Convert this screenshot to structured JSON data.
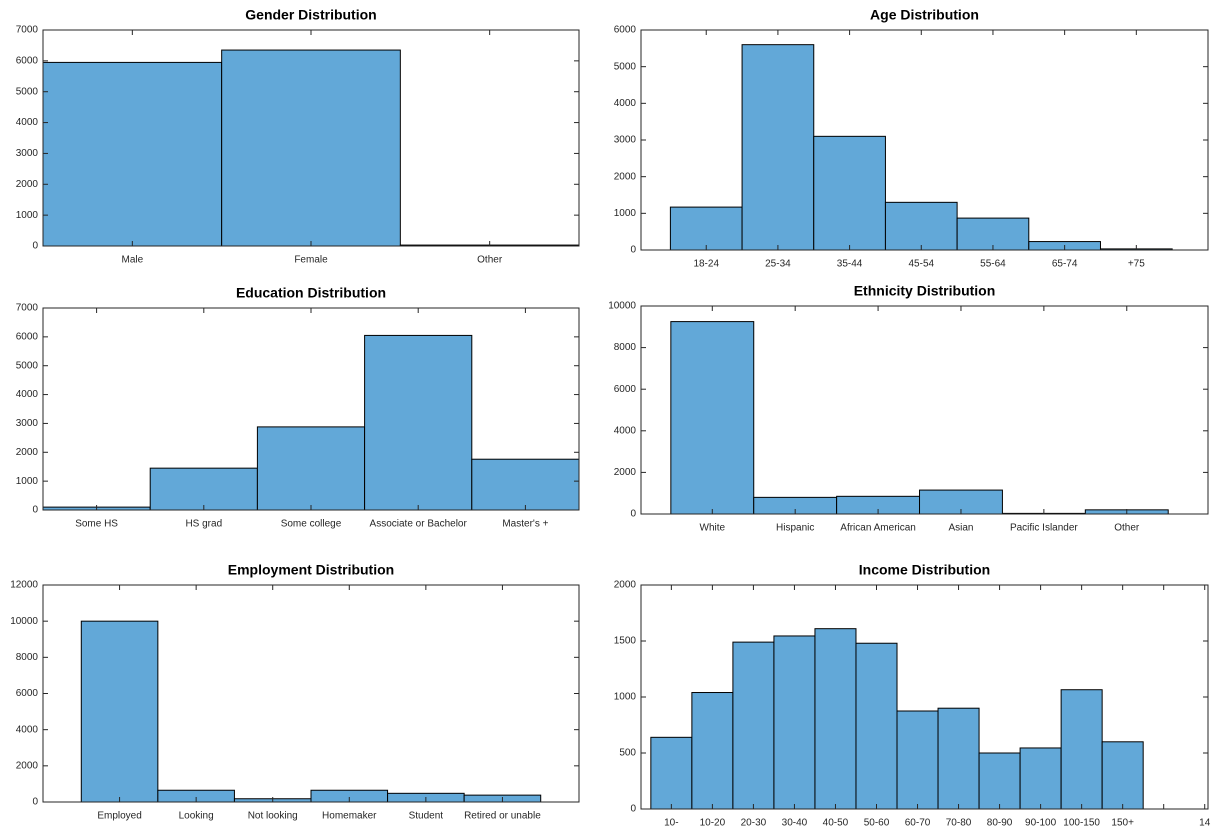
{
  "chart_data": [
    {
      "type": "bar",
      "title": "Gender Distribution",
      "categories": [
        "Male",
        "Female",
        "Other"
      ],
      "values": [
        5950,
        6350,
        30
      ],
      "color": "#62a8d8",
      "ylim": [
        0,
        7000
      ],
      "yticks": [
        0,
        1000,
        2000,
        3000,
        4000,
        5000,
        6000,
        7000
      ]
    },
    {
      "type": "bar",
      "title": "Age Distribution",
      "categories": [
        "18-24",
        "25-34",
        "35-44",
        "45-54",
        "55-64",
        "65-74",
        "+75"
      ],
      "values": [
        1170,
        5600,
        3100,
        1300,
        870,
        230,
        30
      ],
      "color": "#62a8d8",
      "ylim": [
        0,
        6000
      ],
      "yticks": [
        0,
        1000,
        2000,
        3000,
        4000,
        5000,
        6000
      ]
    },
    {
      "type": "bar",
      "title": "Education Distribution",
      "categories": [
        "Some HS",
        "HS grad",
        "Some college",
        "Associate or Bachelor",
        "Master's +"
      ],
      "values": [
        100,
        1450,
        2880,
        6050,
        1760
      ],
      "color": "#62a8d8",
      "ylim": [
        0,
        7000
      ],
      "yticks": [
        0,
        1000,
        2000,
        3000,
        4000,
        5000,
        6000,
        7000
      ]
    },
    {
      "type": "bar",
      "title": "Ethnicity Distribution",
      "categories": [
        "White",
        "Hispanic",
        "African American",
        "Asian",
        "Pacific Islander",
        "Other"
      ],
      "values": [
        9250,
        800,
        850,
        1150,
        30,
        200
      ],
      "color": "#62a8d8",
      "ylim": [
        0,
        10000
      ],
      "yticks": [
        0,
        2000,
        4000,
        6000,
        8000,
        10000
      ]
    },
    {
      "type": "bar",
      "title": "Employment Distribution",
      "categories": [
        "Employed",
        "Looking",
        "Not looking",
        "Homemaker",
        "Student",
        "Retired or unable"
      ],
      "values": [
        10000,
        650,
        180,
        650,
        480,
        380
      ],
      "color": "#62a8d8",
      "ylim": [
        0,
        12000
      ],
      "yticks": [
        0,
        2000,
        4000,
        6000,
        8000,
        10000,
        12000
      ]
    },
    {
      "type": "bar",
      "title": "Income Distribution",
      "categories": [
        "10-",
        "10-20",
        "20-30",
        "30-40",
        "40-50",
        "50-60",
        "60-70",
        "70-80",
        "80-90",
        "90-100",
        "100-150",
        "150+",
        null,
        "14"
      ],
      "values": [
        640,
        1040,
        1490,
        1545,
        1610,
        1480,
        875,
        900,
        500,
        545,
        1065,
        600,
        null,
        null
      ],
      "color": "#62a8d8",
      "ylim": [
        0,
        2000
      ],
      "yticks": [
        0,
        500,
        1000,
        1500,
        2000
      ]
    }
  ]
}
